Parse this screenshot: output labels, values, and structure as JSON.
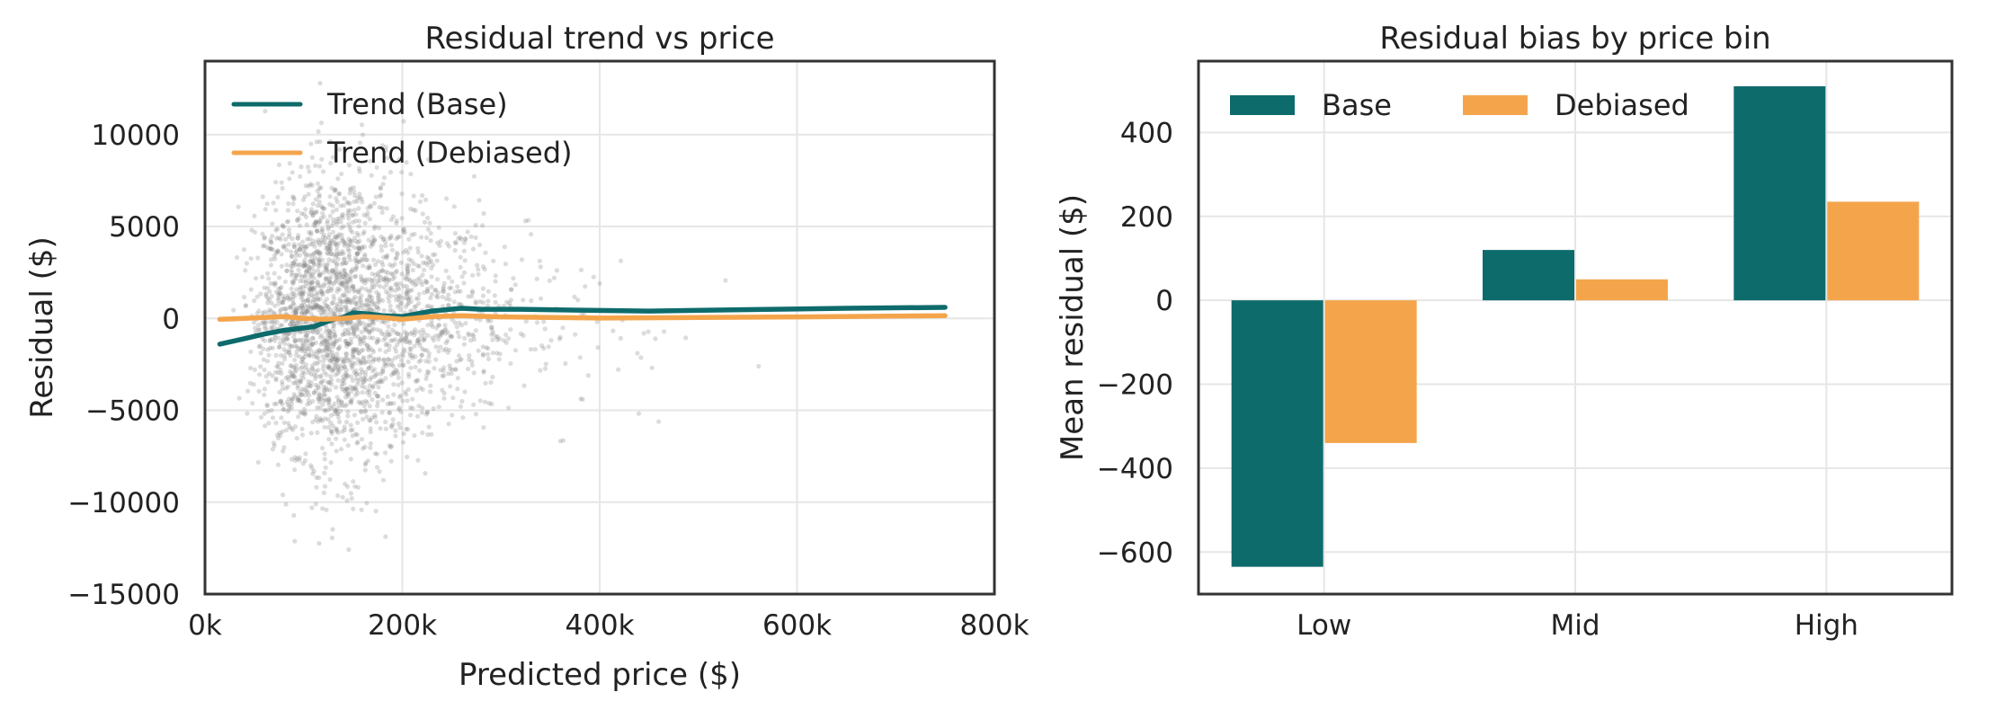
{
  "chart_data": [
    {
      "type": "scatter",
      "title": "Residual trend vs price",
      "xlabel": "Predicted price ($)",
      "ylabel": "Residual ($)",
      "xlim": [
        0,
        800000
      ],
      "ylim": [
        -15000,
        14000
      ],
      "xticks": [
        0,
        200000,
        400000,
        600000,
        800000
      ],
      "xtick_labels": [
        "0k",
        "200k",
        "400k",
        "600k",
        "800k"
      ],
      "yticks": [
        -15000,
        -10000,
        -5000,
        0,
        5000,
        10000
      ],
      "ytick_labels": [
        "−15000",
        "−10000",
        "−5000",
        "0",
        "5000",
        "10000"
      ],
      "grid": true,
      "legend_position": "top-left",
      "scatter_color": "#808080",
      "series": [
        {
          "name": "Trend (Base)",
          "color": "#0e6b6b",
          "x": [
            15000,
            40000,
            60000,
            80000,
            95000,
            110000,
            120000,
            130000,
            140000,
            150000,
            165000,
            180000,
            200000,
            230000,
            260000,
            280000,
            320000,
            380000,
            450000,
            550000,
            650000,
            750000
          ],
          "y": [
            -1400,
            -1100,
            -850,
            -650,
            -550,
            -450,
            -250,
            -50,
            50,
            300,
            250,
            150,
            100,
            400,
            550,
            500,
            500,
            450,
            400,
            480,
            550,
            600
          ]
        },
        {
          "name": "Trend (Debiased)",
          "color": "#f4a54c",
          "x": [
            15000,
            40000,
            60000,
            80000,
            100000,
            120000,
            140000,
            160000,
            180000,
            200000,
            230000,
            260000,
            300000,
            350000,
            400000,
            500000,
            600000,
            750000
          ],
          "y": [
            -50,
            0,
            50,
            100,
            0,
            -50,
            0,
            100,
            50,
            -50,
            100,
            150,
            80,
            50,
            20,
            50,
            80,
            150
          ]
        }
      ]
    },
    {
      "type": "bar",
      "title": "Residual bias by price bin",
      "xlabel": "",
      "ylabel": "Mean residual ($)",
      "categories": [
        "Low",
        "Mid",
        "High"
      ],
      "ylim": [
        -700,
        570
      ],
      "yticks": [
        -600,
        -400,
        -200,
        0,
        200,
        400
      ],
      "ytick_labels": [
        "−600",
        "−400",
        "−200",
        "0",
        "200",
        "400"
      ],
      "grid": true,
      "legend_position": "top-left",
      "series": [
        {
          "name": "Base",
          "color": "#0e6b6b",
          "values": [
            -635,
            120,
            510
          ]
        },
        {
          "name": "Debiased",
          "color": "#f4a54c",
          "values": [
            -340,
            50,
            235
          ]
        }
      ]
    }
  ]
}
